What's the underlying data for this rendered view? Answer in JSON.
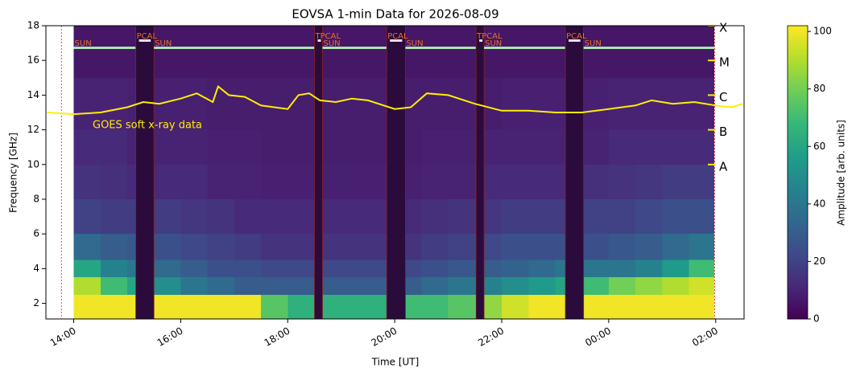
{
  "chart_data": {
    "type": "spectrogram",
    "title": "EOVSA 1-min Data for 2026-08-09",
    "xlabel": "Time [UT]",
    "ylabel": "Frequency [GHz]",
    "xlim": [
      13.48,
      26.53
    ],
    "ylim": [
      1.1,
      18
    ],
    "xticks": [
      {
        "value": 14,
        "label": "14:00"
      },
      {
        "value": 16,
        "label": "16:00"
      },
      {
        "value": 18,
        "label": "18:00"
      },
      {
        "value": 20,
        "label": "20:00"
      },
      {
        "value": 22,
        "label": "22:00"
      },
      {
        "value": 24,
        "label": "00:00"
      },
      {
        "value": 26,
        "label": "02:00"
      }
    ],
    "yticks": [
      2,
      4,
      6,
      8,
      10,
      12,
      14,
      16,
      18
    ],
    "colormap": "viridis",
    "zlim": [
      0,
      102
    ],
    "colorbar_label": "Amplitude [arb. units]",
    "colorbar_ticks": [
      0,
      20,
      40,
      60,
      80,
      100
    ],
    "time_edges": [
      14,
      14.5,
      15,
      15.5,
      16,
      16.5,
      17,
      17.5,
      18,
      18.5,
      19,
      19.5,
      20,
      20.5,
      21,
      21.5,
      22,
      22.5,
      23,
      23.5,
      24,
      24.5,
      25,
      25.5,
      25.97
    ],
    "freq_edges": [
      1.1,
      2.5,
      3.5,
      4.5,
      6,
      8,
      10,
      12,
      15,
      18
    ],
    "z": [
      [
        100,
        100,
        100,
        100,
        100,
        100,
        100,
        75,
        65,
        65,
        65,
        65,
        70,
        70,
        75,
        85,
        95,
        100,
        100,
        100,
        100,
        100,
        100,
        100
      ],
      [
        90,
        70,
        60,
        50,
        40,
        35,
        30,
        30,
        30,
        30,
        30,
        30,
        30,
        35,
        40,
        45,
        50,
        55,
        60,
        70,
        80,
        85,
        90,
        95
      ],
      [
        60,
        45,
        40,
        35,
        30,
        25,
        25,
        22,
        22,
        22,
        22,
        22,
        22,
        25,
        28,
        30,
        32,
        35,
        40,
        40,
        40,
        45,
        55,
        70
      ],
      [
        35,
        30,
        28,
        25,
        22,
        20,
        18,
        15,
        15,
        15,
        15,
        15,
        15,
        18,
        20,
        22,
        25,
        25,
        25,
        25,
        28,
        30,
        35,
        40
      ],
      [
        20,
        18,
        18,
        18,
        16,
        15,
        12,
        12,
        12,
        12,
        12,
        12,
        12,
        14,
        15,
        16,
        18,
        18,
        18,
        20,
        20,
        22,
        25,
        25
      ],
      [
        15,
        14,
        12,
        12,
        12,
        10,
        10,
        9,
        9,
        9,
        9,
        9,
        9,
        10,
        10,
        12,
        12,
        12,
        12,
        14,
        15,
        16,
        18,
        18
      ],
      [
        12,
        12,
        10,
        10,
        10,
        9,
        9,
        8,
        8,
        8,
        8,
        8,
        8,
        9,
        9,
        10,
        10,
        10,
        10,
        10,
        12,
        12,
        12,
        12
      ],
      [
        10,
        10,
        9,
        9,
        9,
        8,
        8,
        8,
        8,
        8,
        8,
        8,
        8,
        8,
        8,
        8,
        9,
        9,
        9,
        9,
        10,
        10,
        10,
        10
      ],
      [
        6,
        6,
        6,
        6,
        6,
        6,
        6,
        6,
        6,
        6,
        6,
        6,
        6,
        6,
        6,
        6,
        6,
        6,
        6,
        6,
        6,
        6,
        6,
        6
      ]
    ],
    "scans": [
      {
        "label": "SUN",
        "start": 14.0,
        "end": 15.16
      },
      {
        "label": "PCAL",
        "start": 15.16,
        "end": 15.5
      },
      {
        "label": "SUN",
        "start": 15.5,
        "end": 18.5
      },
      {
        "label": "TPCAL",
        "start": 18.5,
        "end": 18.65
      },
      {
        "label": "SUN",
        "start": 18.65,
        "end": 19.85
      },
      {
        "label": "PCAL",
        "start": 19.85,
        "end": 20.2
      },
      {
        "label": "SUN",
        "start": 20.2,
        "end": 21.52
      },
      {
        "label": "TPCAL",
        "start": 21.52,
        "end": 21.67
      },
      {
        "label": "SUN",
        "start": 21.67,
        "end": 23.19
      },
      {
        "label": "PCAL",
        "start": 23.19,
        "end": 23.53
      },
      {
        "label": "SUN",
        "start": 23.53,
        "end": 25.98
      }
    ],
    "dashed_lines": [
      13.77,
      25.98
    ],
    "goes": {
      "name": "GOES soft x-ray data",
      "color": "#ffee00",
      "x": [
        13.5,
        14,
        14.5,
        15,
        15.3,
        15.6,
        16,
        16.3,
        16.6,
        16.7,
        16.9,
        17.2,
        17.5,
        18.0,
        18.2,
        18.4,
        18.6,
        18.9,
        19.2,
        19.5,
        20.0,
        20.3,
        20.6,
        21,
        21.5,
        22,
        22.5,
        23,
        23.5,
        24,
        24.5,
        24.8,
        25.2,
        25.6,
        26,
        26.3,
        26.5
      ],
      "y": [
        13.0,
        12.9,
        13.0,
        13.3,
        13.6,
        13.5,
        13.8,
        14.1,
        13.6,
        14.5,
        14.0,
        13.9,
        13.4,
        13.2,
        14.0,
        14.1,
        13.7,
        13.6,
        13.8,
        13.7,
        13.2,
        13.3,
        14.1,
        14.0,
        13.5,
        13.1,
        13.1,
        13.0,
        13.0,
        13.2,
        13.4,
        13.7,
        13.5,
        13.6,
        13.4,
        13.3,
        13.5
      ],
      "levels": [
        {
          "value": 10,
          "label": "A"
        },
        {
          "value": 12,
          "label": "B"
        },
        {
          "value": 14,
          "label": "C"
        },
        {
          "value": 16,
          "label": "M"
        },
        {
          "value": 18,
          "label": "X"
        }
      ]
    }
  }
}
